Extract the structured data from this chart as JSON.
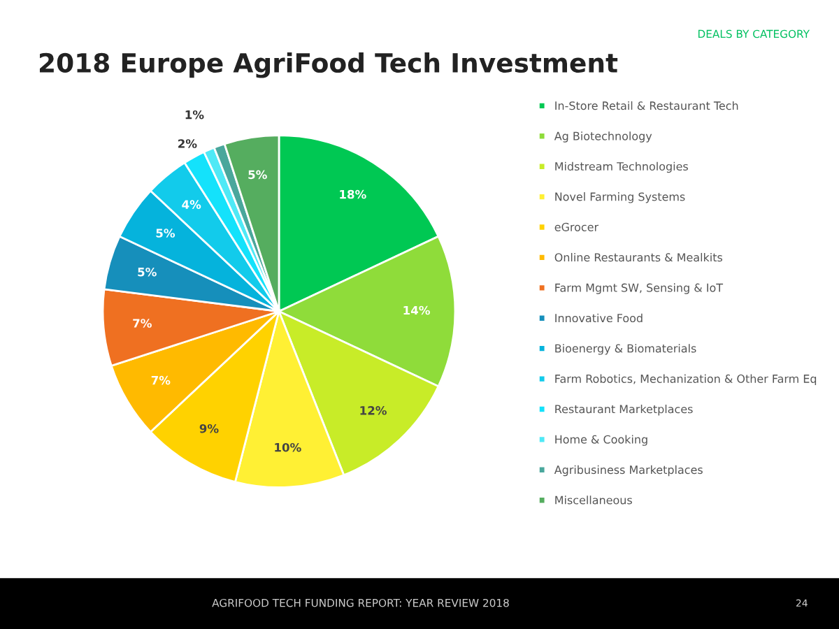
{
  "chart_data": {
    "type": "pie",
    "title": "2018 Europe AgriFood Tech Investment",
    "subtitle": "DEALS BY CATEGORY",
    "categories": [
      "In-Store Retail & Restaurant Tech",
      "Ag Biotechnology",
      "Midstream Technologies",
      "Novel Farming Systems",
      "eGrocer",
      "Online Restaurants & Mealkits",
      "Farm Mgmt SW, Sensing & IoT",
      "Innovative Food",
      "Bioenergy & Biomaterials",
      "Farm Robotics, Mechanization & Other Farm Eq",
      "Restaurant Marketplaces",
      "Home & Cooking",
      "Agribusiness Marketplaces",
      "Miscellaneous"
    ],
    "values": [
      18,
      14,
      12,
      10,
      9,
      7,
      7,
      5,
      5,
      4,
      2,
      1,
      1,
      5
    ],
    "value_labels": [
      "18%",
      "14%",
      "12%",
      "10%",
      "9%",
      "7%",
      "7%",
      "5%",
      "5%",
      "4%",
      "2%",
      "1%",
      null,
      "5%"
    ],
    "colors": [
      "#00c853",
      "#8fdc3a",
      "#c8ec28",
      "#fff034",
      "#ffd200",
      "#ffba00",
      "#ef7021",
      "#168fbb",
      "#05b3dc",
      "#12cbeb",
      "#14e2fb",
      "#4fe9f6",
      "#4aa79c",
      "#55ad5f"
    ],
    "legend": "right",
    "annotations": [
      "AGRIFOOD TECH FUNDING REPORT: YEAR REVIEW 2018",
      "24"
    ]
  }
}
